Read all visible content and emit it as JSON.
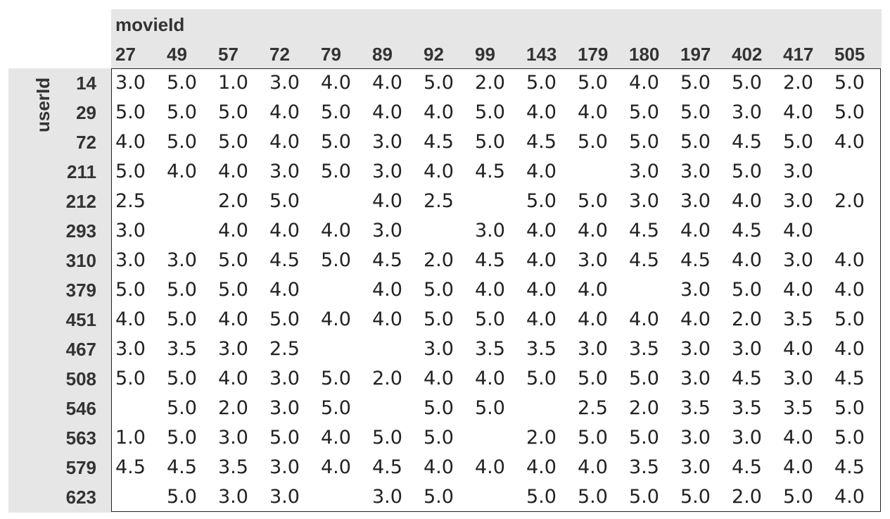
{
  "table": {
    "column_header": "movieId",
    "row_header": "userId",
    "columns": [
      27,
      49,
      57,
      72,
      79,
      89,
      92,
      99,
      143,
      179,
      180,
      197,
      402,
      417,
      505
    ],
    "rows": [
      {
        "label": 14,
        "cells": [
          "3.0",
          "5.0",
          "1.0",
          "3.0",
          "4.0",
          "4.0",
          "5.0",
          "2.0",
          "5.0",
          "5.0",
          "4.0",
          "5.0",
          "5.0",
          "2.0",
          "5.0"
        ]
      },
      {
        "label": 29,
        "cells": [
          "5.0",
          "5.0",
          "5.0",
          "4.0",
          "5.0",
          "4.0",
          "4.0",
          "5.0",
          "4.0",
          "4.0",
          "5.0",
          "5.0",
          "3.0",
          "4.0",
          "5.0"
        ]
      },
      {
        "label": 72,
        "cells": [
          "4.0",
          "5.0",
          "5.0",
          "4.0",
          "5.0",
          "3.0",
          "4.5",
          "5.0",
          "4.5",
          "5.0",
          "5.0",
          "5.0",
          "4.5",
          "5.0",
          "4.0"
        ]
      },
      {
        "label": 211,
        "cells": [
          "5.0",
          "4.0",
          "4.0",
          "3.0",
          "5.0",
          "3.0",
          "4.0",
          "4.5",
          "4.0",
          null,
          "3.0",
          "3.0",
          "5.0",
          "3.0",
          null
        ]
      },
      {
        "label": 212,
        "cells": [
          "2.5",
          null,
          "2.0",
          "5.0",
          null,
          "4.0",
          "2.5",
          null,
          "5.0",
          "5.0",
          "3.0",
          "3.0",
          "4.0",
          "3.0",
          "2.0"
        ]
      },
      {
        "label": 293,
        "cells": [
          "3.0",
          null,
          "4.0",
          "4.0",
          "4.0",
          "3.0",
          null,
          "3.0",
          "4.0",
          "4.0",
          "4.5",
          "4.0",
          "4.5",
          "4.0",
          null
        ]
      },
      {
        "label": 310,
        "cells": [
          "3.0",
          "3.0",
          "5.0",
          "4.5",
          "5.0",
          "4.5",
          "2.0",
          "4.5",
          "4.0",
          "3.0",
          "4.5",
          "4.5",
          "4.0",
          "3.0",
          "4.0"
        ]
      },
      {
        "label": 379,
        "cells": [
          "5.0",
          "5.0",
          "5.0",
          "4.0",
          null,
          "4.0",
          "5.0",
          "4.0",
          "4.0",
          "4.0",
          null,
          "3.0",
          "5.0",
          "4.0",
          "4.0"
        ]
      },
      {
        "label": 451,
        "cells": [
          "4.0",
          "5.0",
          "4.0",
          "5.0",
          "4.0",
          "4.0",
          "5.0",
          "5.0",
          "4.0",
          "4.0",
          "4.0",
          "4.0",
          "2.0",
          "3.5",
          "5.0"
        ]
      },
      {
        "label": 467,
        "cells": [
          "3.0",
          "3.5",
          "3.0",
          "2.5",
          null,
          null,
          "3.0",
          "3.5",
          "3.5",
          "3.0",
          "3.5",
          "3.0",
          "3.0",
          "4.0",
          "4.0"
        ]
      },
      {
        "label": 508,
        "cells": [
          "5.0",
          "5.0",
          "4.0",
          "3.0",
          "5.0",
          "2.0",
          "4.0",
          "4.0",
          "5.0",
          "5.0",
          "5.0",
          "3.0",
          "4.5",
          "3.0",
          "4.5"
        ]
      },
      {
        "label": 546,
        "cells": [
          null,
          "5.0",
          "2.0",
          "3.0",
          "5.0",
          null,
          "5.0",
          "5.0",
          null,
          "2.5",
          "2.0",
          "3.5",
          "3.5",
          "3.5",
          "5.0"
        ]
      },
      {
        "label": 563,
        "cells": [
          "1.0",
          "5.0",
          "3.0",
          "5.0",
          "4.0",
          "5.0",
          "5.0",
          null,
          "2.0",
          "5.0",
          "5.0",
          "3.0",
          "3.0",
          "4.0",
          "5.0"
        ]
      },
      {
        "label": 579,
        "cells": [
          "4.5",
          "4.5",
          "3.5",
          "3.0",
          "4.0",
          "4.5",
          "4.0",
          "4.0",
          "4.0",
          "4.0",
          "3.5",
          "3.0",
          "4.5",
          "4.0",
          "4.5"
        ]
      },
      {
        "label": 623,
        "cells": [
          null,
          "5.0",
          "3.0",
          "3.0",
          null,
          "3.0",
          "5.0",
          null,
          "5.0",
          "5.0",
          "5.0",
          "5.0",
          "2.0",
          "5.0",
          "4.0"
        ]
      }
    ]
  }
}
